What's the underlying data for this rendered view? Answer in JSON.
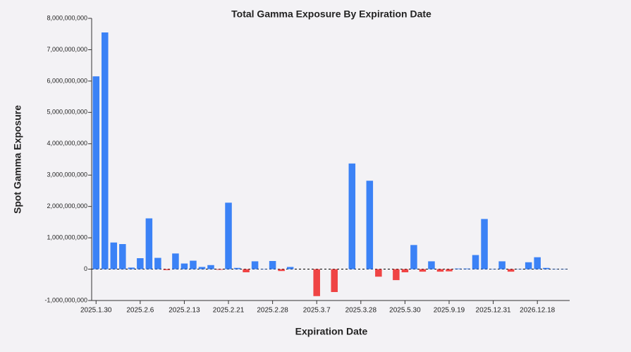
{
  "chart_data": {
    "type": "bar",
    "title": "Total Gamma Exposure By Expiration Date",
    "x_label": "Expiration Date",
    "y_label": "Spot Gamma Exposure",
    "categories": [
      "2025.1.30",
      null,
      null,
      null,
      null,
      "2025.2.6",
      null,
      null,
      null,
      null,
      "2025.2.13",
      null,
      null,
      null,
      null,
      "2025.2.21",
      null,
      null,
      null,
      null,
      "2025.2.28",
      null,
      null,
      null,
      null,
      "2025.3.7",
      null,
      null,
      null,
      null,
      "2025.3.28",
      null,
      null,
      null,
      null,
      "2025.5.30",
      null,
      null,
      null,
      null,
      "2025.9.19",
      null,
      null,
      null,
      null,
      "2025.12.31",
      null,
      null,
      null,
      null,
      "2026.12.18",
      null,
      null,
      null
    ],
    "values": [
      6150000000,
      7550000000,
      850000000,
      800000000,
      50000000,
      350000000,
      1620000000,
      360000000,
      -30000000,
      500000000,
      180000000,
      270000000,
      70000000,
      130000000,
      -20000000,
      2120000000,
      40000000,
      -100000000,
      250000000,
      10000000,
      260000000,
      -60000000,
      70000000,
      0,
      0,
      -860000000,
      0,
      -730000000,
      0,
      3370000000,
      0,
      2820000000,
      -240000000,
      0,
      -350000000,
      -100000000,
      770000000,
      -80000000,
      250000000,
      -80000000,
      -70000000,
      20000000,
      20000000,
      450000000,
      1600000000,
      10000000,
      250000000,
      -80000000,
      10000000,
      220000000,
      380000000,
      40000000,
      10000000,
      10000000
    ],
    "positive_color": "#3b82f6",
    "negative_color": "#ef4444",
    "ylim": [
      -1000000000,
      8000000000
    ],
    "yticks": [
      {
        "value": -1000000000,
        "label": "-1,000,000,000"
      },
      0,
      {
        "value": 1000000000,
        "label": "1,000,000,000"
      },
      {
        "value": 2000000000,
        "label": "2,000,000,000"
      },
      {
        "value": 3000000000,
        "label": "3,000,000,000"
      },
      {
        "value": 4000000000,
        "label": "4,000,000,000"
      },
      {
        "value": 5000000000,
        "label": "5,000,000,000"
      },
      {
        "value": 6000000000,
        "label": "6,000,000,000"
      },
      {
        "value": 7000000000,
        "label": "7,000,000,000"
      },
      {
        "value": 8000000000,
        "label": "8,000,000,000"
      }
    ]
  }
}
